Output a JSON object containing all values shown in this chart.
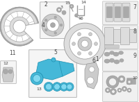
{
  "bg_color": "#ffffff",
  "box_edge": "#bbbbbb",
  "lc": "#999999",
  "dc": "#aaaaaa",
  "lcc": "#cccccc",
  "lcc2": "#dddddd",
  "blue": "#45b8d8",
  "blue_dark": "#2090b0",
  "blue_light": "#80d8f0",
  "text_color": "#444444",
  "fs": 5.5,
  "fs_small": 4.5
}
